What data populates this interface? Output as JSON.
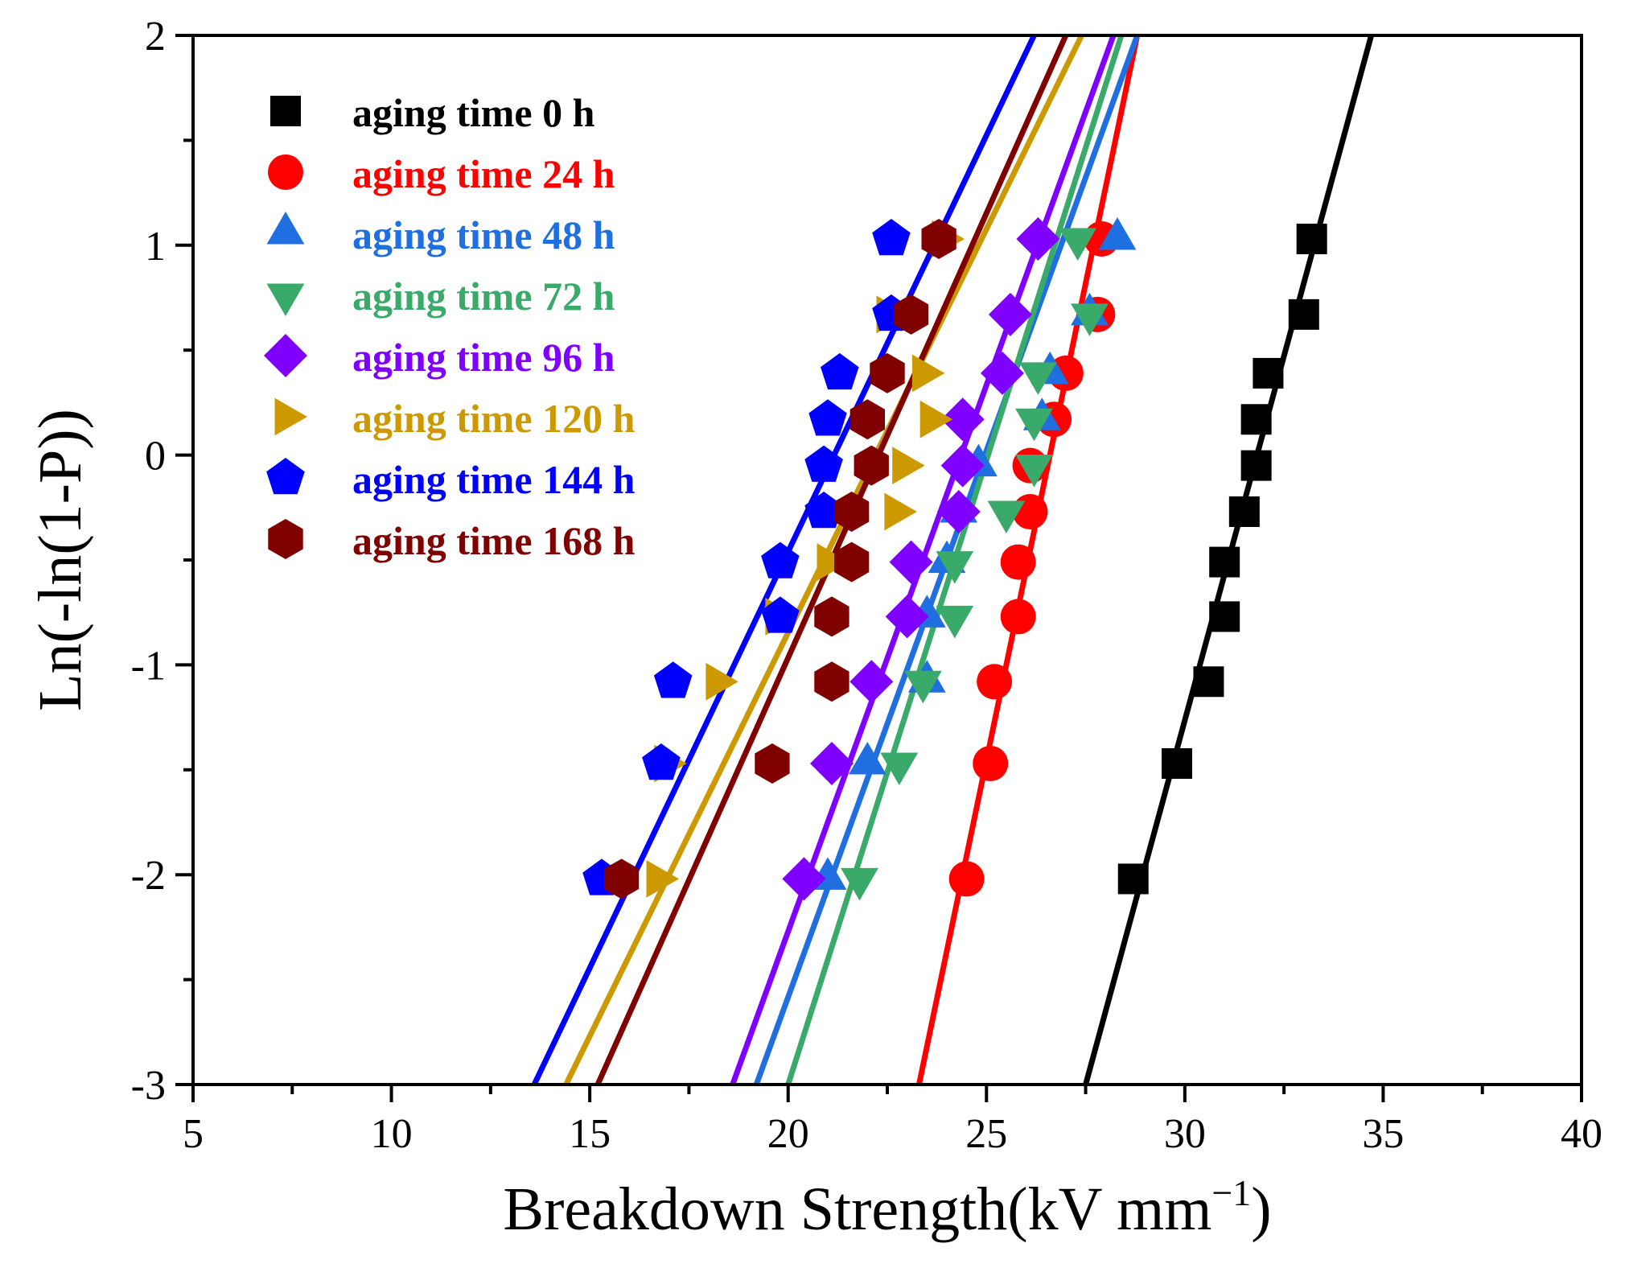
{
  "chart_data": {
    "type": "scatter",
    "title": "",
    "xlabel": "Breakdown Strength(kV mm",
    "xlabel_unit_exponent": "−1",
    "xlabel_close": ")",
    "ylabel": "Ln(-ln(1-P))",
    "xlim": [
      5,
      40
    ],
    "ylim": [
      -3,
      2
    ],
    "x_ticks": [
      5,
      10,
      15,
      20,
      25,
      30,
      35,
      40
    ],
    "x_tick_labels": [
      "5",
      "10",
      "15",
      "20",
      "25",
      "30",
      "35",
      "40"
    ],
    "y_ticks": [
      -3,
      -2,
      -1,
      0,
      1,
      2
    ],
    "y_tick_labels": [
      "-3",
      "-2",
      "-1",
      "0",
      "1",
      "2"
    ],
    "grid": false,
    "legend_position": "top-left",
    "y_levels": [
      -2.02,
      -1.47,
      -1.08,
      -0.77,
      -0.51,
      -0.27,
      -0.05,
      0.17,
      0.39,
      0.67,
      1.03
    ],
    "series": [
      {
        "name": "aging time 0 h",
        "label": "aging time 0 h",
        "color": "#000000",
        "marker": "square",
        "x": [
          28.7,
          29.8,
          30.6,
          31.0,
          31.0,
          31.5,
          31.8,
          31.8,
          32.1,
          33.0,
          33.2
        ],
        "fit": {
          "x": [
            27.5,
            34.7
          ],
          "y": [
            -3,
            2
          ]
        }
      },
      {
        "name": "aging time 24 h",
        "label": "aging time 24 h",
        "color": "#ff0000",
        "marker": "circle",
        "x": [
          24.5,
          25.1,
          25.2,
          25.8,
          25.8,
          26.1,
          26.1,
          26.7,
          27.0,
          27.8,
          27.9
        ],
        "fit": {
          "x": [
            23.3,
            28.8
          ],
          "y": [
            -3,
            2
          ]
        }
      },
      {
        "name": "aging time 48 h",
        "label": "aging time 48 h",
        "color": "#1f6fe0",
        "marker": "triangle-up",
        "x": [
          21.0,
          22.0,
          23.5,
          23.5,
          24.0,
          24.3,
          24.8,
          26.4,
          26.6,
          27.6,
          28.3
        ],
        "fit": {
          "x": [
            19.2,
            28.8
          ],
          "y": [
            -3,
            2
          ]
        }
      },
      {
        "name": "aging time 72 h",
        "label": "aging time 72 h",
        "color": "#3aaa6a",
        "marker": "triangle-down",
        "x": [
          21.8,
          22.8,
          23.4,
          24.2,
          24.2,
          25.5,
          26.2,
          26.2,
          26.3,
          27.6,
          27.3
        ],
        "fit": {
          "x": [
            20.0,
            28.4
          ],
          "y": [
            -3,
            2
          ]
        }
      },
      {
        "name": "aging time 96 h",
        "label": "aging time 96 h",
        "color": "#8000ff",
        "marker": "diamond",
        "x": [
          20.4,
          21.1,
          22.1,
          23.0,
          23.1,
          24.3,
          24.4,
          24.4,
          25.4,
          25.6,
          26.3
        ],
        "fit": {
          "x": [
            18.6,
            28.2
          ],
          "y": [
            -3,
            2
          ]
        }
      },
      {
        "name": "aging time 120 h",
        "label": "aging time 120 h",
        "color": "#cc9900",
        "marker": "triangle-right",
        "x": [
          16.7,
          16.9,
          18.2,
          19.7,
          21.0,
          22.7,
          22.9,
          23.6,
          23.4,
          22.5,
          23.9
        ],
        "fit": {
          "x": [
            14.4,
            27.4
          ],
          "y": [
            -3,
            2
          ]
        }
      },
      {
        "name": "aging time 144 h",
        "label": "aging time 144 h",
        "color": "#0000ff",
        "marker": "pentagon",
        "x": [
          15.3,
          16.8,
          17.1,
          19.8,
          19.8,
          20.9,
          20.9,
          21.0,
          21.3,
          22.6,
          22.6
        ],
        "fit": {
          "x": [
            13.6,
            26.2
          ],
          "y": [
            -3,
            2
          ]
        }
      },
      {
        "name": "aging time 168 h",
        "label": "aging time 168 h",
        "color": "#800000",
        "marker": "hexagon",
        "x": [
          15.8,
          19.6,
          21.1,
          21.1,
          21.6,
          21.6,
          22.1,
          22.0,
          22.5,
          23.1,
          23.8
        ],
        "fit": {
          "x": [
            15.2,
            27.0
          ],
          "y": [
            -3,
            2
          ]
        }
      }
    ]
  }
}
